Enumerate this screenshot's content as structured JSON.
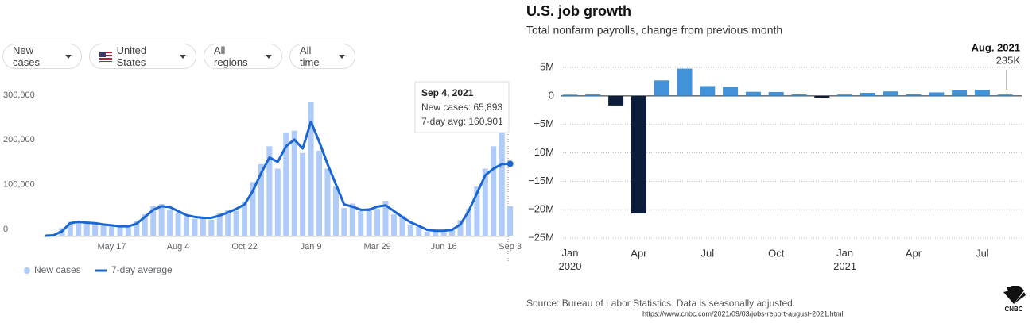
{
  "filters": [
    "New cases",
    "United States",
    "All regions",
    "All time"
  ],
  "chart_data": [
    {
      "type": "bar_line",
      "categories": [
        null,
        null,
        null,
        null,
        null,
        null,
        null,
        null,
        "May 17",
        null,
        null,
        null,
        null,
        null,
        null,
        null,
        "Aug 4",
        null,
        null,
        null,
        null,
        null,
        null,
        null,
        "Oct 22",
        null,
        null,
        null,
        null,
        null,
        null,
        null,
        "Jan 9",
        null,
        null,
        null,
        null,
        null,
        null,
        null,
        "Mar 29",
        null,
        null,
        null,
        null,
        null,
        null,
        null,
        "Jun 16",
        null,
        null,
        null,
        null,
        null,
        null,
        null,
        "Sep 3"
      ],
      "series": [
        {
          "name": "New cases",
          "type": "bar",
          "color": "#aecbfa",
          "values": [
            0,
            1500,
            17000,
            31000,
            30000,
            33000,
            26000,
            27000,
            20000,
            22000,
            19000,
            33000,
            48000,
            66000,
            71000,
            58000,
            52000,
            44000,
            38000,
            43000,
            36000,
            50000,
            58000,
            56000,
            76000,
            120000,
            160000,
            200000,
            150000,
            230000,
            235000,
            185000,
            300000,
            190000,
            150000,
            110000,
            62000,
            72000,
            55000,
            62000,
            60000,
            78000,
            48000,
            45000,
            25000,
            20000,
            9000,
            13000,
            8000,
            12000,
            35000,
            60000,
            110000,
            150000,
            200000,
            230000,
            65893
          ]
        },
        {
          "name": "7-day average",
          "type": "line",
          "color": "#1a66d2",
          "values": [
            0,
            1000,
            10000,
            28000,
            31000,
            29000,
            28000,
            25000,
            23000,
            21000,
            21000,
            27000,
            42000,
            58000,
            66000,
            64000,
            55000,
            46000,
            42000,
            40000,
            40000,
            45000,
            52000,
            60000,
            70000,
            100000,
            140000,
            175000,
            165000,
            200000,
            215000,
            195000,
            255000,
            210000,
            160000,
            115000,
            70000,
            65000,
            58000,
            58000,
            65000,
            68000,
            55000,
            42000,
            30000,
            22000,
            13000,
            11000,
            11000,
            13000,
            25000,
            55000,
            95000,
            135000,
            150000,
            160000,
            160901
          ]
        }
      ],
      "ylim": [
        0,
        300000
      ],
      "yticks": [
        0,
        {
          "value": 100000,
          "label": "100,000"
        },
        {
          "value": 200000,
          "label": "200,000"
        },
        {
          "value": 300000,
          "label": "300,000"
        }
      ],
      "tooltip": {
        "title": "Sep 4, 2021",
        "lines": [
          "New cases: 65,893",
          "7-day avg: 160,901"
        ]
      }
    },
    {
      "type": "bar",
      "title": "U.S. job growth",
      "subtitle": "Total nonfarm payrolls, change from previous month",
      "categories": [
        "Jan 2020",
        null,
        null,
        "Apr",
        null,
        null,
        "Jul",
        null,
        null,
        "Oct",
        null,
        null,
        "Jan 2021",
        null,
        null,
        "Apr",
        null,
        null,
        "Jul",
        null
      ],
      "values": [
        214000,
        251000,
        -1683000,
        -20679000,
        2725000,
        4781000,
        1726000,
        1583000,
        716000,
        680000,
        264000,
        -306000,
        233000,
        536000,
        785000,
        269000,
        614000,
        962000,
        1053000,
        235000
      ],
      "colors": {
        "positive": "#4192d9",
        "negative": "#0c1d3b"
      },
      "ylim": [
        -25000000,
        5000000
      ],
      "yticks": [
        {
          "value": -25000000,
          "label": "−25M"
        },
        {
          "value": -20000000,
          "label": "−20M"
        },
        {
          "value": -15000000,
          "label": "−15M"
        },
        {
          "value": -10000000,
          "label": "−10M"
        },
        {
          "value": -5000000,
          "label": "−5M"
        },
        0,
        {
          "value": 5000000,
          "label": "5M"
        }
      ],
      "grid": true,
      "annotation": {
        "label": "Aug. 2021",
        "text": "235K"
      },
      "source": "Source: Bureau of Labor Statistics. Data is seasonally adjusted.",
      "url": "https://www.cnbc.com/2021/09/03/jobs-report-august-2021.html",
      "logo": "CNBC"
    }
  ]
}
